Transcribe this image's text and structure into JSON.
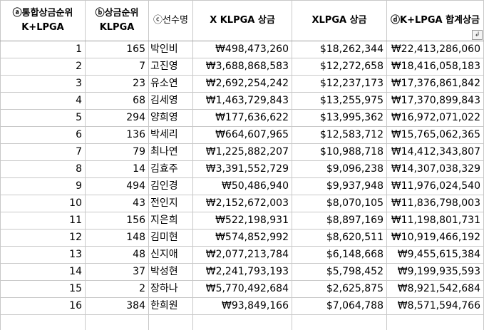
{
  "headers": {
    "total_rank_line1": "ⓐ통합상금순위",
    "total_rank_line2": "K+LPGA",
    "klpga_rank_line1": "ⓑ상금순위",
    "klpga_rank_line2": "KLPGA",
    "player": "ⓒ선수명",
    "klpga_prize": "X KLPGA 상금",
    "lpga_prize": "XLPGA 상금",
    "total_prize": "ⓓK+LPGA 합계상금",
    "filter_icon_glyph": "↲"
  },
  "rows": [
    {
      "rank": "1",
      "klpga_rank": "165",
      "name": "박인비",
      "klpga_prize": "₩498,473,260",
      "lpga_prize": "$18,262,344",
      "total_prize": "₩22,413,286,060"
    },
    {
      "rank": "2",
      "klpga_rank": "7",
      "name": "고진영",
      "klpga_prize": "₩3,688,868,583",
      "lpga_prize": "$12,272,658",
      "total_prize": "₩18,416,058,183"
    },
    {
      "rank": "3",
      "klpga_rank": "23",
      "name": "유소연",
      "klpga_prize": "₩2,692,254,242",
      "lpga_prize": "$12,237,173",
      "total_prize": "₩17,376,861,842"
    },
    {
      "rank": "4",
      "klpga_rank": "68",
      "name": "김세영",
      "klpga_prize": "₩1,463,729,843",
      "lpga_prize": "$13,255,975",
      "total_prize": "₩17,370,899,843"
    },
    {
      "rank": "5",
      "klpga_rank": "294",
      "name": "양희영",
      "klpga_prize": "₩177,636,622",
      "lpga_prize": "$13,995,362",
      "total_prize": "₩16,972,071,022"
    },
    {
      "rank": "6",
      "klpga_rank": "136",
      "name": "박세리",
      "klpga_prize": "₩664,607,965",
      "lpga_prize": "$12,583,712",
      "total_prize": "₩15,765,062,365"
    },
    {
      "rank": "7",
      "klpga_rank": "79",
      "name": "최나연",
      "klpga_prize": "₩1,225,882,207",
      "lpga_prize": "$10,988,718",
      "total_prize": "₩14,412,343,807"
    },
    {
      "rank": "8",
      "klpga_rank": "14",
      "name": "김효주",
      "klpga_prize": "₩3,391,552,729",
      "lpga_prize": "$9,096,238",
      "total_prize": "₩14,307,038,329"
    },
    {
      "rank": "9",
      "klpga_rank": "494",
      "name": "김인경",
      "klpga_prize": "₩50,486,940",
      "lpga_prize": "$9,937,948",
      "total_prize": "₩11,976,024,540"
    },
    {
      "rank": "10",
      "klpga_rank": "43",
      "name": "전인지",
      "klpga_prize": "₩2,152,672,003",
      "lpga_prize": "$8,070,105",
      "total_prize": "₩11,836,798,003"
    },
    {
      "rank": "11",
      "klpga_rank": "156",
      "name": "지은희",
      "klpga_prize": "₩522,198,931",
      "lpga_prize": "$8,897,169",
      "total_prize": "₩11,198,801,731"
    },
    {
      "rank": "12",
      "klpga_rank": "148",
      "name": "김미현",
      "klpga_prize": "₩574,852,992",
      "lpga_prize": "$8,620,511",
      "total_prize": "₩10,919,466,192"
    },
    {
      "rank": "13",
      "klpga_rank": "48",
      "name": "신지애",
      "klpga_prize": "₩2,077,213,784",
      "lpga_prize": "$6,148,668",
      "total_prize": "₩9,455,615,384"
    },
    {
      "rank": "14",
      "klpga_rank": "37",
      "name": "박성현",
      "klpga_prize": "₩2,241,793,193",
      "lpga_prize": "$5,798,452",
      "total_prize": "₩9,199,935,593"
    },
    {
      "rank": "15",
      "klpga_rank": "2",
      "name": "장하나",
      "klpga_prize": "₩5,770,492,684",
      "lpga_prize": "$2,625,875",
      "total_prize": "₩8,921,542,684"
    },
    {
      "rank": "16",
      "klpga_rank": "384",
      "name": "한희원",
      "klpga_prize": "₩93,849,166",
      "lpga_prize": "$7,064,788",
      "total_prize": "₩8,571,594,766"
    }
  ]
}
